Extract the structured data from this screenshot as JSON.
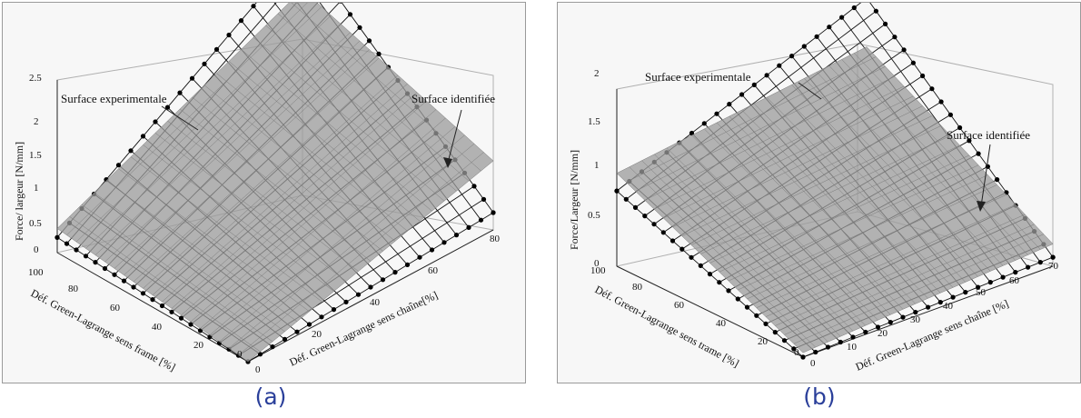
{
  "captions": {
    "a": "(a)",
    "b": "(b)"
  },
  "chart_data": [
    {
      "type": "surface",
      "panel": "(a)",
      "zlabel": "Force/ largeur [N/mm]",
      "xlabel": "Déf. Green-Lagrange sens frame [%]",
      "ylabel": "Déf. Green-Lagrange sens chaîne[%]",
      "z_ticks": [
        "0",
        "0.5",
        "1",
        "1.5",
        "2",
        "2.5"
      ],
      "x_ticks": [
        "100",
        "80",
        "60",
        "40",
        "20",
        "0"
      ],
      "y_ticks": [
        "0",
        "20",
        "40",
        "60",
        "80"
      ],
      "zlim": [
        0,
        2.5
      ],
      "xlim": [
        0,
        100
      ],
      "ylim": [
        0,
        80
      ],
      "grid": true,
      "annotations": [
        "Surface experimentale",
        "Surface identifiée"
      ],
      "series": [
        {
          "name": "Surface experimentale",
          "style": "black mesh with dot markers",
          "corner_values": {
            "frame0_chain0": 0,
            "frame100_chain0": 0.22,
            "frame0_chain80": 0.25,
            "frame100_chain80": 2.5
          }
        },
        {
          "name": "Surface identifiée",
          "style": "grey shaded surface",
          "corner_values": {
            "frame0_chain0": 0,
            "frame100_chain0": 0.35,
            "frame0_chain80": 1.0,
            "frame100_chain80": 1.9
          }
        }
      ]
    },
    {
      "type": "surface",
      "panel": "(b)",
      "zlabel": "Force/Largeur [N/mm]",
      "xlabel": "Déf. Green-Lagrange sens trame [%]",
      "ylabel": "Déf. Green-Lagrange sens chaîne [%]",
      "z_ticks": [
        "0",
        "0.5",
        "1",
        "1.5",
        "2"
      ],
      "x_ticks": [
        "100",
        "80",
        "60",
        "40",
        "20",
        "0"
      ],
      "y_ticks": [
        "0",
        "10",
        "20",
        "30",
        "40",
        "50",
        "60",
        "70"
      ],
      "zlim": [
        0,
        2
      ],
      "xlim": [
        0,
        100
      ],
      "ylim": [
        0,
        70
      ],
      "grid": true,
      "annotations": [
        "Surface experimentale",
        "Surface identifiée"
      ],
      "series": [
        {
          "name": "Surface experimentale",
          "style": "black mesh with dot markers",
          "corner_values": {
            "trame0_chain0": 0,
            "trame100_chain0": 0.85,
            "trame0_chain70": 0.1,
            "trame100_chain70": 2.0
          }
        },
        {
          "name": "Surface identifiée",
          "style": "grey shaded surface",
          "corner_values": {
            "trame0_chain0": 0.05,
            "trame100_chain0": 1.05,
            "trame0_chain70": 0.25,
            "trame100_chain70": 1.45
          }
        }
      ]
    }
  ]
}
